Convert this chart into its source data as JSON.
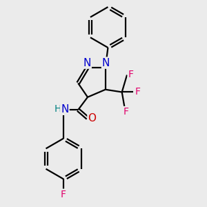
{
  "background_color": "#ebebeb",
  "bond_color": "#000000",
  "bond_width": 1.6,
  "atom_colors": {
    "N": "#0000cc",
    "O": "#cc0000",
    "F_cf3": "#e0006a",
    "F_ph": "#e0006a",
    "H": "#008080",
    "C": "#000000"
  },
  "font_size": 11,
  "fig_size": [
    3.0,
    3.0
  ],
  "xlim": [
    -0.55,
    1.45
  ],
  "ylim": [
    -1.35,
    1.85
  ]
}
